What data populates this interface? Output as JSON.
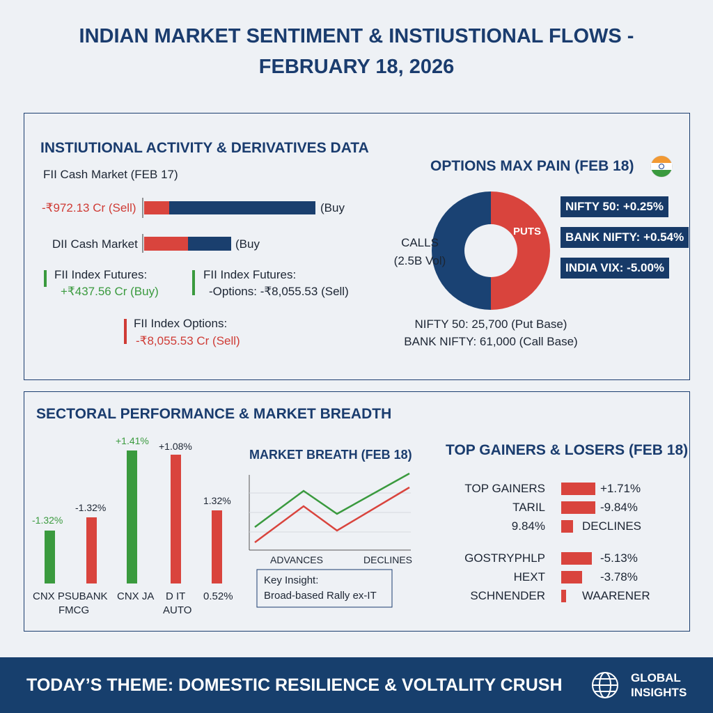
{
  "title": "INDIAN MARKET SENTIMENT & INSTIUSTIONAL FLOWS - FEBRUARY 18, 2026",
  "institutional": {
    "heading": "INSTIUTIONAL ACTIVITY & DERIVATIVES DATA",
    "fii_cash": {
      "label": "FII Cash Market (FEB 17)",
      "sell_label": "-₹972.13 Cr (Sell)",
      "buy_label": "(Buy"
    },
    "dii_cash": {
      "label": "DII Cash Market",
      "buy_label": "(Buy"
    },
    "fii_futures": {
      "title": "FII Index Futures:",
      "value": "+₹437.56 Cr (Buy)"
    },
    "fii_futures_options": {
      "title": "FII Index Futures:",
      "value": "-Options:  -₹8,055.53 (Sell)"
    },
    "fii_options": {
      "title": "FII Index Options:",
      "value": "-₹8,055.53 Cr (Sell)"
    }
  },
  "max_pain": {
    "heading": "OPTIONS MAX PAIN (FEB 18)",
    "calls": "CALLS",
    "calls_volume": "(2.5B Vol)",
    "puts": "PUTS",
    "badges": [
      "NIFTY 50:  +0.25%",
      "BANK NIFTY: +0.54%",
      "INDIA VIX:  -5.00%"
    ],
    "notes": [
      "NIFTY 50: 25,700 (Put Base)",
      "BANK NIFTY: 61,000 (Call Base)"
    ]
  },
  "sectoral": {
    "heading": "SECTORAL PERFORMANCE & MARKET BREADTH",
    "bar_labels": [
      "-1.32%",
      "-1.32%",
      "+1.41%",
      "+1.08%",
      "1.32%"
    ],
    "category_labels": [
      "CNX PSUBANK",
      "FMCG",
      "CNX JA",
      "D IT",
      "AUTO",
      "0.52%"
    ]
  },
  "market_breadth": {
    "heading": "MARKET BREATH (FEB 18)",
    "x_labels": [
      "ADVANCES",
      "DECLINES"
    ],
    "insight_title": "Key Insight:",
    "insight_text": "Broad-based Rally ex-IT"
  },
  "gainers_losers": {
    "heading": "TOP GAINERS & LOSERS (FEB 18)",
    "rows": [
      [
        "TOP GAINERS",
        "+1.71%"
      ],
      [
        "TARIL",
        "-9.84%"
      ],
      [
        "9.84%",
        "DECLINES"
      ],
      [
        "GOSTRYPHLP",
        "-5.13%"
      ],
      [
        "HEXT",
        "-3.78%"
      ],
      [
        "SCHNENDER",
        "WAARENER"
      ]
    ]
  },
  "footer": {
    "theme": "TODAY’S THEME: DOMESTIC RESILIENCE & VOLTALITY CRUSH",
    "brand": [
      "GLOBAL",
      "INSIGHTS"
    ]
  }
}
